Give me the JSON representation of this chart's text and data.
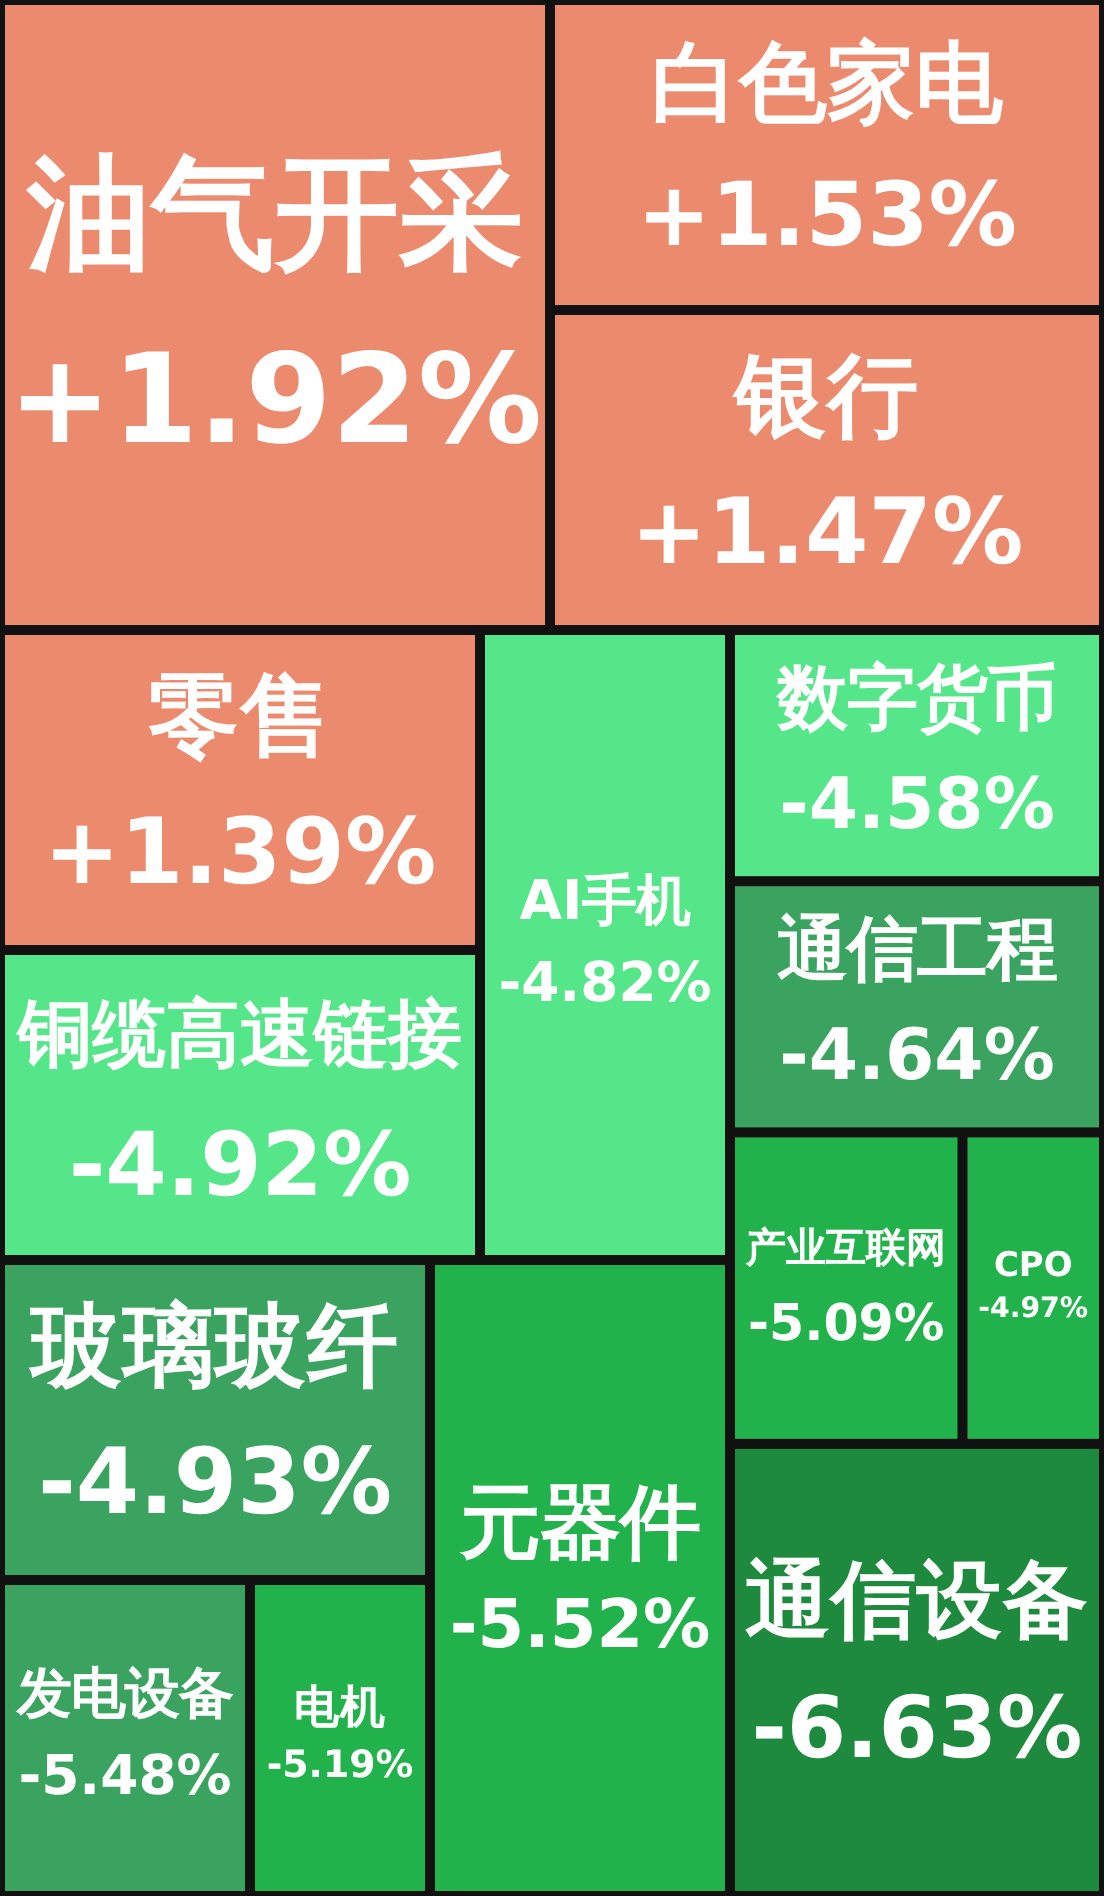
{
  "chart_data": {
    "type": "other",
    "categories": [
      "油气开采",
      "白色家电",
      "银行",
      "零售",
      "铜缆高速链接",
      "AI手机",
      "数字货币",
      "通信工程",
      "玻璃玻纤",
      "元器件",
      "产业互联网",
      "CPO",
      "通信设备",
      "发电设备",
      "电机"
    ],
    "values": [
      1.92,
      1.53,
      1.47,
      1.39,
      -4.92,
      -4.82,
      -4.58,
      -4.64,
      -4.93,
      -5.52,
      -5.09,
      -4.97,
      -6.63,
      -5.48,
      -5.19
    ],
    "value_labels": [
      "+1.92%",
      "+1.53%",
      "+1.47%",
      "+1.39%",
      "-4.92%",
      "-4.82%",
      "-4.58%",
      "-4.64%",
      "-4.93%",
      "-5.52%",
      "-5.09%",
      "-4.97%",
      "-6.63%",
      "-5.48%",
      "-5.19%"
    ],
    "colors": [
      "#ec8a6e",
      "#ec8a6e",
      "#ec8a6e",
      "#ec8a6e",
      "#55e68a",
      "#55e68a",
      "#55e68a",
      "#3aa35f",
      "#3aa35f",
      "#22b24c",
      "#22b24c",
      "#22b24c",
      "#1e8a3e",
      "#3aa35f",
      "#22b24c"
    ]
  }
}
